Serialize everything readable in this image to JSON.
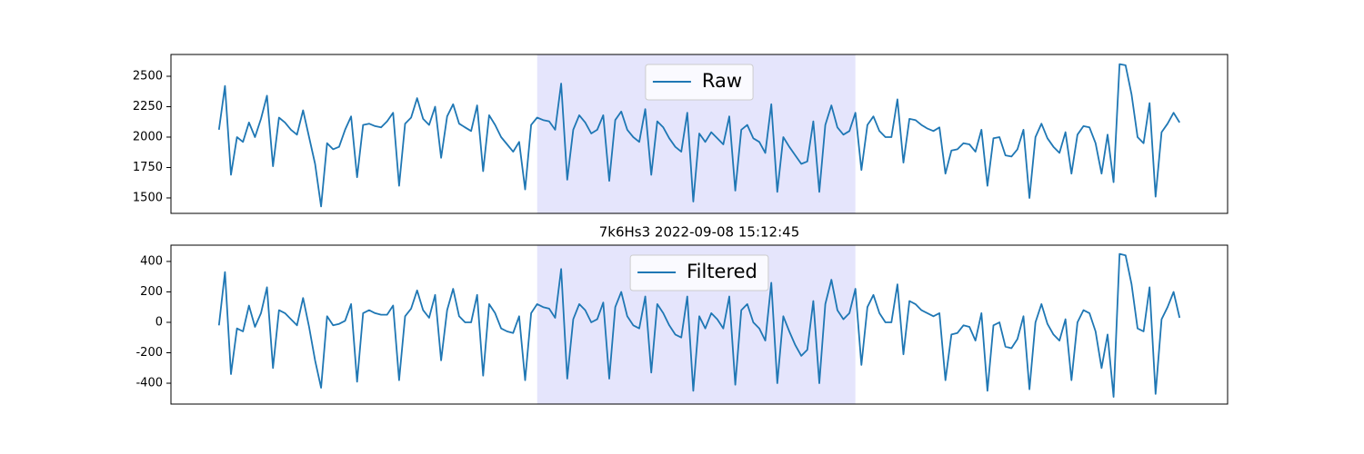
{
  "chart_data": [
    {
      "type": "line",
      "legend": "upper center",
      "xlim": [
        -8,
        168
      ],
      "highlight_span": [
        53,
        106
      ],
      "highlight_color": "#e5e5fc",
      "ylim": [
        1373,
        2679
      ],
      "yticks": [
        1500,
        1750,
        2000,
        2250,
        2500
      ],
      "series": [
        {
          "name": "Raw",
          "color": "#1f77b4",
          "values": [
            2060,
            2420,
            1690,
            2000,
            1960,
            2120,
            2000,
            2150,
            2340,
            1760,
            2160,
            2120,
            2060,
            2020,
            2220,
            2000,
            1780,
            1430,
            1950,
            1900,
            1920,
            2060,
            2170,
            1670,
            2100,
            2110,
            2090,
            2080,
            2130,
            2200,
            1600,
            2110,
            2160,
            2320,
            2150,
            2100,
            2250,
            1830,
            2170,
            2270,
            2110,
            2080,
            2050,
            2260,
            1720,
            2180,
            2100,
            2000,
            1940,
            1880,
            1960,
            1570,
            2100,
            2160,
            2140,
            2130,
            2060,
            2440,
            1650,
            2060,
            2180,
            2120,
            2030,
            2060,
            2180,
            1640,
            2140,
            2210,
            2060,
            2000,
            1960,
            2230,
            1690,
            2130,
            2080,
            1990,
            1920,
            1880,
            2200,
            1470,
            2030,
            1960,
            2040,
            1990,
            1940,
            2170,
            1560,
            2060,
            2100,
            1990,
            1960,
            1870,
            2270,
            1550,
            2000,
            1920,
            1850,
            1780,
            1800,
            2130,
            1550,
            2100,
            2260,
            2080,
            2020,
            2050,
            2200,
            1730,
            2100,
            2170,
            2050,
            2000,
            2000,
            2310,
            1790,
            2150,
            2140,
            2100,
            2070,
            2050,
            2080,
            1700,
            1890,
            1900,
            1950,
            1940,
            1880,
            2060,
            1600,
            1990,
            2000,
            1850,
            1840,
            1900,
            2060,
            1500,
            2000,
            2110,
            1990,
            1920,
            1870,
            2040,
            1700,
            2020,
            2090,
            2080,
            1950,
            1700,
            2020,
            1630,
            2600,
            2590,
            2350,
            2000,
            1950,
            2280,
            1510,
            2040,
            2110,
            2200,
            2120
          ]
        }
      ]
    },
    {
      "type": "line",
      "title": "7k6Hs3 2022-09-08 15:12:45",
      "legend": "upper center",
      "xlim": [
        -8,
        168
      ],
      "highlight_span": [
        53,
        106
      ],
      "highlight_color": "#e5e5fc",
      "ylim": [
        -537,
        507
      ],
      "yticks": [
        -400,
        -200,
        0,
        200,
        400
      ],
      "series": [
        {
          "name": "Filtered",
          "color": "#1f77b4",
          "values": [
            -20,
            330,
            -340,
            -40,
            -60,
            110,
            -30,
            60,
            230,
            -300,
            80,
            60,
            20,
            -20,
            160,
            -30,
            -250,
            -430,
            40,
            -20,
            -10,
            10,
            120,
            -390,
            60,
            80,
            60,
            50,
            50,
            110,
            -380,
            40,
            90,
            210,
            80,
            30,
            180,
            -250,
            80,
            220,
            40,
            0,
            0,
            180,
            -350,
            120,
            60,
            -40,
            -60,
            -70,
            40,
            -380,
            60,
            120,
            100,
            90,
            30,
            350,
            -370,
            20,
            120,
            80,
            0,
            20,
            130,
            -370,
            100,
            200,
            40,
            -20,
            -40,
            170,
            -330,
            120,
            60,
            -20,
            -80,
            -100,
            170,
            -450,
            40,
            -40,
            60,
            20,
            -40,
            170,
            -410,
            80,
            120,
            0,
            -40,
            -120,
            260,
            -400,
            40,
            -60,
            -150,
            -220,
            -180,
            140,
            -400,
            120,
            280,
            80,
            20,
            60,
            220,
            -280,
            100,
            180,
            60,
            0,
            0,
            250,
            -210,
            140,
            120,
            80,
            60,
            40,
            60,
            -380,
            -80,
            -70,
            -20,
            -30,
            -120,
            60,
            -450,
            -20,
            0,
            -160,
            -170,
            -110,
            40,
            -440,
            0,
            120,
            -10,
            -80,
            -120,
            20,
            -380,
            0,
            80,
            60,
            -60,
            -300,
            -80,
            -490,
            450,
            440,
            250,
            -40,
            -60,
            230,
            -470,
            20,
            100,
            200,
            30
          ]
        }
      ]
    }
  ]
}
